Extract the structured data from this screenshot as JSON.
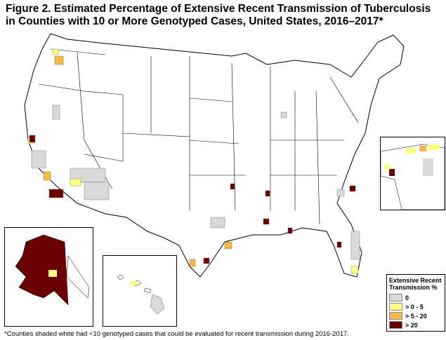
{
  "title": {
    "line1": "Figure 2.  Estimated Percentage of Extensive Recent Transmission of Tuberculosis",
    "line2": "in Counties with 10 or More Genotyped Cases, United States, 2016–2017*"
  },
  "legend": {
    "title_line1": "Extensive Recent",
    "title_line2": "Transmission %",
    "items": [
      {
        "label": "0",
        "color": "#d9d9d9"
      },
      {
        "label": "> 0 - 5",
        "color": "#ffff80"
      },
      {
        "label": "> 5 - 20",
        "color": "#f6b845"
      },
      {
        "label": "> 20",
        "color": "#6b0000"
      }
    ]
  },
  "footnote": "*Counties shaded white had <10 genotyped cases that could be evaluated for recent transmission during 2016-2017."
}
